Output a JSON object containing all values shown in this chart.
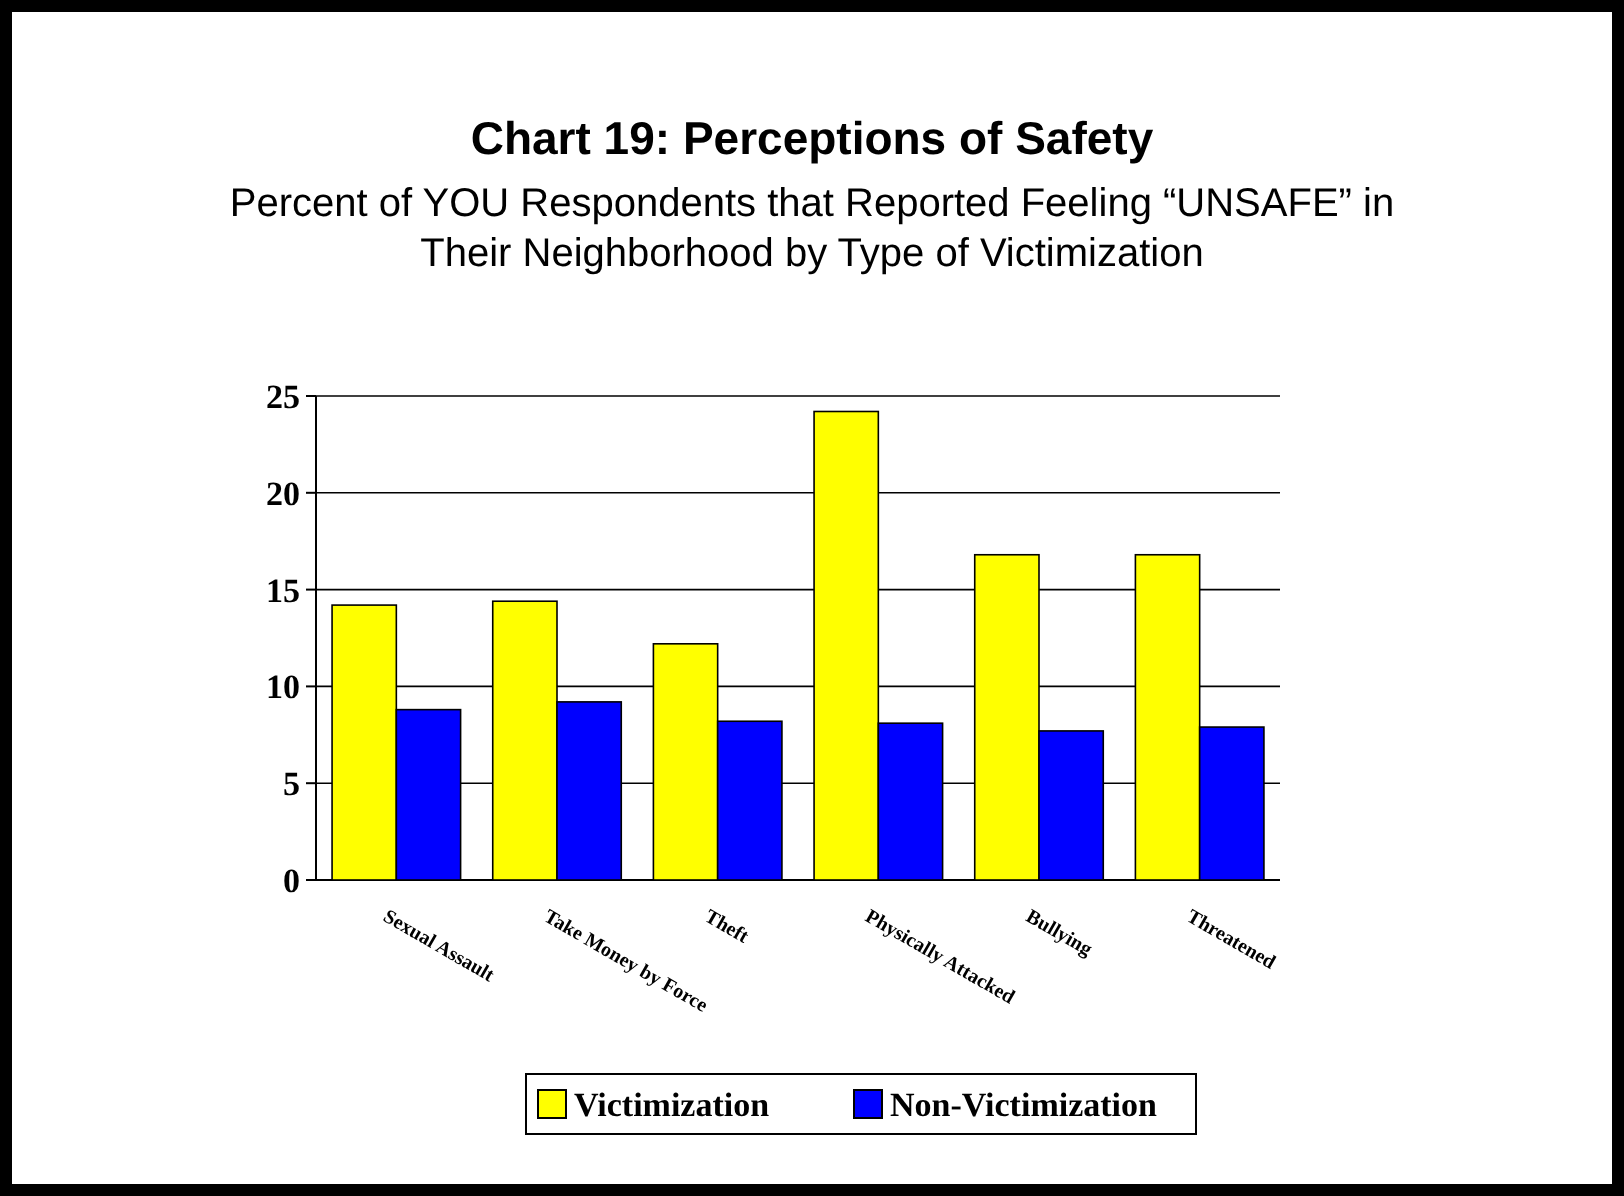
{
  "chart_data": {
    "type": "bar",
    "title": "Chart 19:  Perceptions of Safety",
    "subtitle": "Percent of YOU Respondents that Reported Feeling “UNSAFE” in Their Neighborhood by Type of Victimization",
    "categories": [
      "Sexual Assault",
      "Take Money by Force",
      "Theft",
      "Physically Attacked",
      "Bullying",
      "Threatened"
    ],
    "series": [
      {
        "name": "Victimization",
        "color": "#ffff00",
        "values": [
          14.2,
          14.4,
          12.2,
          24.2,
          16.8,
          16.8
        ]
      },
      {
        "name": "Non-Victimization",
        "color": "#0000ff",
        "values": [
          8.8,
          9.2,
          8.2,
          8.1,
          7.7,
          7.9
        ]
      }
    ],
    "ylim": [
      0,
      25
    ],
    "yticks": [
      0,
      5,
      10,
      15,
      20,
      25
    ],
    "grid": "y",
    "legend": "bottom"
  }
}
